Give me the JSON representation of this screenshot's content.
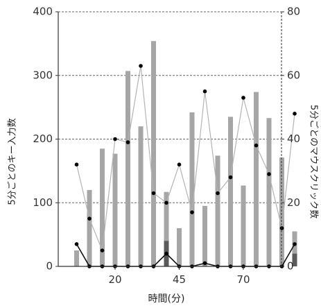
{
  "chart_data": {
    "type": "bar",
    "x_unit_minutes": 5,
    "xlabel": "時間(分)",
    "ylabel_left": "5分ごとのキー入力数",
    "ylabel_right": "5分ごとのマウスクリック数",
    "x_ticks": [
      20,
      45,
      70
    ],
    "y_left_ticks": [
      0,
      100,
      200,
      300,
      400
    ],
    "y_right_ticks": [
      0,
      20,
      40,
      60,
      80
    ],
    "ylim_left": [
      0,
      400
    ],
    "ylim_right": [
      0,
      80
    ],
    "grid": "horizontal dashed",
    "colors": {
      "bar_key": "#a6a6a6",
      "bar_secondary": "#5a5a5a",
      "line_gray": "#b3b3b3",
      "line_black": "#111111",
      "grid": "#666666"
    },
    "series": [
      {
        "kind": "bar",
        "axis": "left",
        "color": "#a6a6a6",
        "x": [
          1,
          2,
          3,
          4,
          5,
          6,
          7,
          8,
          9,
          10,
          11,
          12,
          13,
          14,
          15,
          16,
          17,
          18
        ],
        "values": [
          25,
          120,
          185,
          177,
          307,
          220,
          354,
          117,
          60,
          242,
          95,
          174,
          235,
          127,
          274,
          233,
          171,
          55
        ]
      },
      {
        "kind": "bar",
        "axis": "left",
        "color": "#5a5a5a",
        "x": [
          8,
          18
        ],
        "values": [
          40,
          20
        ]
      },
      {
        "kind": "line",
        "axis": "right",
        "color": "#b3b3b3",
        "x": [
          1,
          2,
          3,
          4,
          5,
          6,
          7,
          8,
          9,
          10,
          11,
          12,
          13,
          14,
          15,
          16,
          17,
          18
        ],
        "values": [
          32,
          15,
          5,
          40,
          39,
          63,
          23,
          20,
          32,
          17,
          55,
          23,
          28,
          53,
          38,
          29,
          12,
          48
        ]
      },
      {
        "kind": "line",
        "axis": "right",
        "color": "#111111",
        "x": [
          1,
          2,
          3,
          4,
          5,
          6,
          7,
          8,
          9,
          10,
          11,
          12,
          13,
          14,
          15,
          16,
          17,
          18
        ],
        "values": [
          7,
          0,
          0,
          0,
          0,
          0,
          0,
          4,
          0,
          0,
          1,
          0,
          0,
          0,
          0,
          0,
          0,
          7
        ]
      }
    ]
  }
}
